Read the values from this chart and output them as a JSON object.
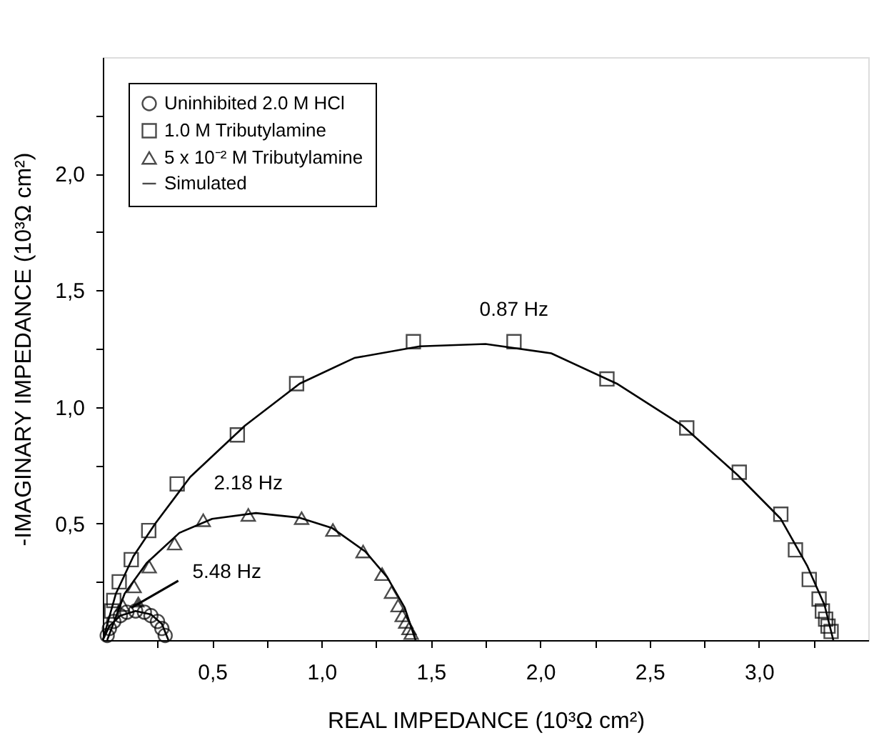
{
  "chart_data": {
    "type": "scatter",
    "xlabel": "REAL IMPEDANCE (10³Ω cm²)",
    "ylabel": "-IMAGINARY IMPEDANCE (10³Ω cm²)",
    "xlim": [
      0,
      3.5
    ],
    "ylim": [
      0,
      2.5
    ],
    "xticks": [
      {
        "value": 0.25,
        "label": null
      },
      {
        "value": 0.5,
        "label": "0,5"
      },
      {
        "value": 0.75,
        "label": null
      },
      {
        "value": 1.0,
        "label": "1,0"
      },
      {
        "value": 1.25,
        "label": null
      },
      {
        "value": 1.5,
        "label": "1,5"
      },
      {
        "value": 1.75,
        "label": null
      },
      {
        "value": 2.0,
        "label": "2,0"
      },
      {
        "value": 2.25,
        "label": null
      },
      {
        "value": 2.5,
        "label": "2,5"
      },
      {
        "value": 2.75,
        "label": null
      },
      {
        "value": 3.0,
        "label": "3,0"
      },
      {
        "value": 3.25,
        "label": null
      }
    ],
    "yticks": [
      {
        "value": 0.25,
        "label": null
      },
      {
        "value": 0.5,
        "label": "0,5"
      },
      {
        "value": 0.75,
        "label": null
      },
      {
        "value": 1.0,
        "label": "1,0"
      },
      {
        "value": 1.25,
        "label": null
      },
      {
        "value": 1.5,
        "label": "1,5"
      },
      {
        "value": 1.75,
        "label": null
      },
      {
        "value": 2.0,
        "label": "2,0"
      },
      {
        "value": 2.25,
        "label": null
      }
    ],
    "grid": false,
    "legend": "top left",
    "series": [
      {
        "name": "Uninhibited 2.0 M HCl",
        "color": "#000000",
        "marker": "circle",
        "x": [
          0.02,
          0.03,
          0.05,
          0.08,
          0.11,
          0.15,
          0.19,
          0.22,
          0.25,
          0.27,
          0.285
        ],
        "values": [
          0.02,
          0.05,
          0.08,
          0.105,
          0.12,
          0.125,
          0.12,
          0.105,
          0.08,
          0.05,
          0.02
        ]
      },
      {
        "name": "1.0 M Tributylamine",
        "color": "#000000",
        "marker": "square",
        "x": [
          0.04,
          0.05,
          0.075,
          0.13,
          0.21,
          0.34,
          0.615,
          0.886,
          1.42,
          1.88,
          2.305,
          2.67,
          2.91,
          3.1,
          3.167,
          3.23,
          3.275,
          3.29,
          3.305,
          3.316,
          3.33
        ],
        "values": [
          0.125,
          0.17,
          0.25,
          0.345,
          0.47,
          0.67,
          0.88,
          1.1,
          1.28,
          1.28,
          1.12,
          0.91,
          0.72,
          0.54,
          0.387,
          0.26,
          0.176,
          0.125,
          0.09,
          0.06,
          0.037
        ]
      },
      {
        "name": "5 x 10⁻² M Tributylamine",
        "color": "#000000",
        "marker": "triangle",
        "x": [
          0.09,
          0.143,
          0.212,
          0.328,
          0.459,
          0.665,
          0.909,
          1.052,
          1.19,
          1.277,
          1.32,
          1.35,
          1.369,
          1.385,
          1.4,
          1.41
        ],
        "values": [
          0.15,
          0.23,
          0.315,
          0.414,
          0.514,
          0.537,
          0.523,
          0.472,
          0.38,
          0.283,
          0.206,
          0.148,
          0.106,
          0.078,
          0.05,
          0.03
        ]
      },
      {
        "name": "Simulated",
        "type": "line",
        "color": "#000000",
        "line_style": "solid",
        "x": [
          0.0,
          0.03,
          0.08,
          0.15,
          0.22,
          0.27,
          0.3,
          null,
          0.0,
          0.06,
          0.14,
          0.24,
          0.4,
          0.65,
          0.9,
          1.15,
          1.45,
          1.75,
          2.05,
          2.35,
          2.65,
          2.9,
          3.1,
          3.22,
          3.3,
          3.34,
          null,
          0.02,
          0.1,
          0.2,
          0.35,
          0.5,
          0.7,
          0.9,
          1.05,
          1.2,
          1.3,
          1.38,
          1.43
        ],
        "values": [
          0.0,
          0.06,
          0.105,
          0.125,
          0.11,
          0.07,
          0.0,
          null,
          0.0,
          0.2,
          0.36,
          0.5,
          0.7,
          0.92,
          1.1,
          1.21,
          1.26,
          1.27,
          1.23,
          1.1,
          0.92,
          0.71,
          0.52,
          0.32,
          0.15,
          0.0,
          null,
          0.0,
          0.2,
          0.33,
          0.46,
          0.52,
          0.545,
          0.525,
          0.48,
          0.38,
          0.27,
          0.14,
          0.0
        ]
      }
    ],
    "annotations": [
      {
        "text": "0.87 Hz",
        "x": 1.88,
        "y": 1.28
      },
      {
        "text": "2.18 Hz",
        "x": 0.665,
        "y": 0.537
      },
      {
        "text": "5.48 Hz",
        "x": 0.11,
        "y": 0.12
      }
    ]
  }
}
